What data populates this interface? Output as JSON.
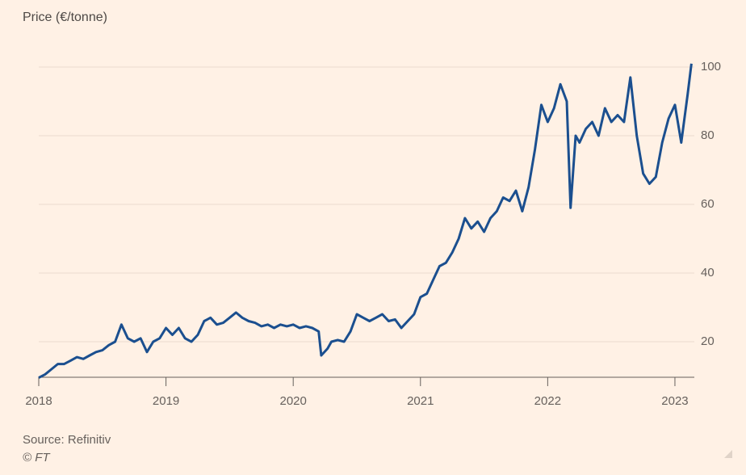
{
  "chart_data": {
    "type": "line",
    "title": "Price (€/tonne)",
    "source": "Source: Refinitiv",
    "copyright": "© FT",
    "color": "#1b4f8f",
    "grid": true,
    "xlim": [
      2018,
      2023.15
    ],
    "xticks": [
      2018,
      2019,
      2020,
      2021,
      2022,
      2023
    ],
    "ylim": [
      10,
      102
    ],
    "yticks": [
      20,
      40,
      60,
      80,
      100
    ],
    "x": [
      2018.0,
      2018.05,
      2018.1,
      2018.15,
      2018.2,
      2018.25,
      2018.3,
      2018.35,
      2018.4,
      2018.45,
      2018.5,
      2018.55,
      2018.6,
      2018.65,
      2018.7,
      2018.75,
      2018.8,
      2018.85,
      2018.9,
      2018.95,
      2019.0,
      2019.05,
      2019.1,
      2019.15,
      2019.2,
      2019.25,
      2019.3,
      2019.35,
      2019.4,
      2019.45,
      2019.5,
      2019.55,
      2019.6,
      2019.65,
      2019.7,
      2019.75,
      2019.8,
      2019.85,
      2019.9,
      2019.95,
      2020.0,
      2020.05,
      2020.1,
      2020.15,
      2020.2,
      2020.22,
      2020.27,
      2020.3,
      2020.35,
      2020.4,
      2020.45,
      2020.5,
      2020.55,
      2020.6,
      2020.65,
      2020.7,
      2020.75,
      2020.8,
      2020.85,
      2020.9,
      2020.95,
      2021.0,
      2021.05,
      2021.1,
      2021.15,
      2021.2,
      2021.25,
      2021.3,
      2021.35,
      2021.4,
      2021.45,
      2021.5,
      2021.55,
      2021.6,
      2021.65,
      2021.7,
      2021.75,
      2021.8,
      2021.85,
      2021.9,
      2021.95,
      2022.0,
      2022.05,
      2022.1,
      2022.15,
      2022.18,
      2022.22,
      2022.25,
      2022.3,
      2022.35,
      2022.4,
      2022.45,
      2022.5,
      2022.55,
      2022.6,
      2022.65,
      2022.7,
      2022.75,
      2022.8,
      2022.85,
      2022.9,
      2022.95,
      2023.0,
      2023.05,
      2023.1,
      2023.13
    ],
    "values": [
      9.5,
      10.5,
      12,
      13.5,
      13.5,
      14.5,
      15.5,
      15,
      16,
      17,
      17.5,
      19,
      20,
      25,
      21,
      20,
      21,
      17,
      20,
      21,
      24,
      22,
      24,
      21,
      20,
      22,
      26,
      27,
      25,
      25.5,
      27,
      28.5,
      27,
      26,
      25.5,
      24.5,
      25,
      24,
      25,
      24.5,
      25,
      24,
      24.5,
      24,
      23,
      16,
      18,
      20,
      20.5,
      20,
      23,
      28,
      27,
      26,
      27,
      28,
      26,
      26.5,
      24,
      26,
      28,
      33,
      34,
      38,
      42,
      43,
      46,
      50,
      56,
      53,
      55,
      52,
      56,
      58,
      62,
      61,
      64,
      58,
      65,
      76,
      89,
      84,
      88,
      95,
      90,
      59,
      80,
      78,
      82,
      84,
      80,
      88,
      84,
      86,
      84,
      97,
      80,
      69,
      66,
      68,
      78,
      85,
      89,
      78,
      92,
      101
    ]
  }
}
